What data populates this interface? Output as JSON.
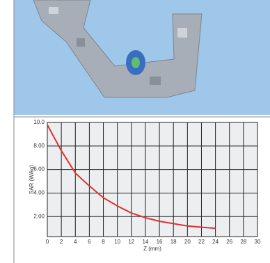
{
  "chart_data": {
    "type": "line",
    "x_label": "Z (mm)",
    "y_label": "SAR (W/kg)",
    "x": [
      0,
      2,
      4,
      6,
      8,
      10,
      12,
      14,
      16,
      18,
      20,
      22,
      24
    ],
    "series": [
      {
        "name": "SAR",
        "color": "#e03030",
        "values": [
          9.8,
          7.6,
          5.7,
          4.6,
          3.6,
          2.9,
          2.3,
          1.9,
          1.6,
          1.4,
          1.2,
          1.1,
          1.0
        ]
      }
    ],
    "xlim": [
      0,
      30
    ],
    "xticks": [
      0,
      2,
      4,
      6,
      8,
      10,
      12,
      14,
      16,
      18,
      20,
      22,
      24,
      26,
      28,
      30
    ],
    "ylim": [
      0.3,
      10
    ],
    "yticks": [
      {
        "value": 2,
        "label": "2.00"
      },
      {
        "value": 4,
        "label": "4.00"
      },
      {
        "value": 6,
        "label": "6.00"
      },
      {
        "value": 8,
        "label": "8.00"
      },
      {
        "value": 10,
        "label": "10.0"
      }
    ],
    "grid": true
  }
}
